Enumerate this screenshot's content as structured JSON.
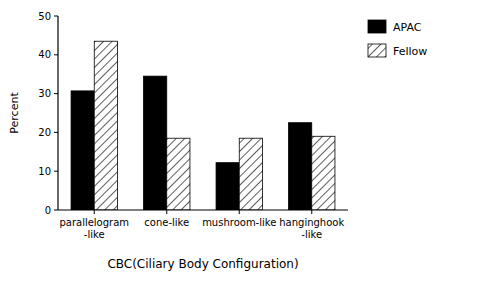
{
  "chart_data": {
    "type": "bar",
    "categories": [
      "parallelogram\n-like",
      "cone-like",
      "mushroom-like",
      "hanginghook\n-like"
    ],
    "series": [
      {
        "name": "APAC",
        "color": "#000000",
        "values": [
          30.7,
          34.5,
          12.2,
          22.5
        ]
      },
      {
        "name": "Fellow",
        "color": "#ffffff",
        "values": [
          43.5,
          18.5,
          18.5,
          19.0
        ]
      }
    ],
    "xlabel": "CBC(Ciliary Body Configuration)",
    "ylabel": "Percent",
    "ylim": [
      0,
      50
    ],
    "yticks": [
      0,
      10,
      20,
      30,
      40,
      50
    ],
    "grid": false,
    "legend": "right"
  }
}
